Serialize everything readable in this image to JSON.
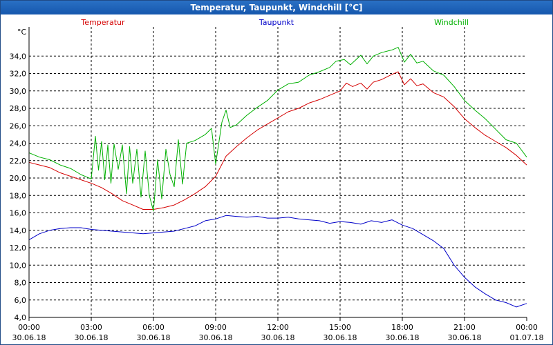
{
  "window": {
    "title": "Temperatur, Taupunkt, Windchill [°C]"
  },
  "colors": {
    "temperature": "#d40000",
    "dewpoint": "#0000c8",
    "windchill": "#00b000",
    "grid": "#000000",
    "axis": "#000000"
  },
  "chart_data": {
    "type": "line",
    "title": "Temperatur, Taupunkt, Windchill [°C]",
    "ylabel": "°C",
    "xlabel": "",
    "ylim": [
      4.0,
      36.0
    ],
    "xlim_hours": [
      0,
      24
    ],
    "yticks": [
      4.0,
      6.0,
      8.0,
      10.0,
      12.0,
      14.0,
      16.0,
      18.0,
      20.0,
      22.0,
      24.0,
      26.0,
      28.0,
      30.0,
      32.0,
      34.0
    ],
    "ytick_labels": [
      "4,0",
      "6,0",
      "8,0",
      "10,0",
      "12,0",
      "14,0",
      "16,0",
      "18,0",
      "20,0",
      "22,0",
      "24,0",
      "26,0",
      "28,0",
      "30,0",
      "32,0",
      "34,0"
    ],
    "xticks": [
      {
        "hour": 0,
        "time": "00:00",
        "date": "30.06.18"
      },
      {
        "hour": 3,
        "time": "03:00",
        "date": "30.06.18"
      },
      {
        "hour": 6,
        "time": "06:00",
        "date": "30.06.18"
      },
      {
        "hour": 9,
        "time": "09:00",
        "date": "30.06.18"
      },
      {
        "hour": 12,
        "time": "12:00",
        "date": "30.06.18"
      },
      {
        "hour": 15,
        "time": "15:00",
        "date": "30.06.18"
      },
      {
        "hour": 18,
        "time": "18:00",
        "date": "30.06.18"
      },
      {
        "hour": 21,
        "time": "21:00",
        "date": "30.06.18"
      },
      {
        "hour": 24,
        "time": "00:00",
        "date": "01.07.18"
      }
    ],
    "grid": true,
    "legend_position": "top",
    "series": [
      {
        "name": "Temperatur",
        "color": "#d40000",
        "points": [
          [
            0.0,
            21.8
          ],
          [
            0.5,
            21.5
          ],
          [
            1.0,
            21.2
          ],
          [
            1.5,
            20.6
          ],
          [
            2.0,
            20.2
          ],
          [
            2.5,
            19.8
          ],
          [
            3.0,
            19.4
          ],
          [
            3.5,
            18.9
          ],
          [
            4.0,
            18.2
          ],
          [
            4.5,
            17.4
          ],
          [
            5.0,
            16.9
          ],
          [
            5.5,
            16.4
          ],
          [
            6.0,
            16.4
          ],
          [
            6.5,
            16.6
          ],
          [
            7.0,
            16.9
          ],
          [
            7.5,
            17.5
          ],
          [
            8.0,
            18.2
          ],
          [
            8.5,
            19.0
          ],
          [
            9.0,
            20.2
          ],
          [
            9.5,
            22.5
          ],
          [
            10.0,
            23.6
          ],
          [
            10.5,
            24.6
          ],
          [
            11.0,
            25.5
          ],
          [
            11.5,
            26.2
          ],
          [
            12.0,
            26.9
          ],
          [
            12.5,
            27.6
          ],
          [
            13.0,
            28.0
          ],
          [
            13.5,
            28.6
          ],
          [
            14.0,
            29.0
          ],
          [
            14.5,
            29.5
          ],
          [
            15.0,
            30.0
          ],
          [
            15.3,
            30.9
          ],
          [
            15.6,
            30.5
          ],
          [
            16.0,
            30.9
          ],
          [
            16.3,
            30.2
          ],
          [
            16.6,
            31.0
          ],
          [
            17.0,
            31.3
          ],
          [
            17.5,
            31.9
          ],
          [
            17.8,
            32.2
          ],
          [
            18.1,
            30.7
          ],
          [
            18.4,
            31.4
          ],
          [
            18.7,
            30.6
          ],
          [
            19.0,
            30.8
          ],
          [
            19.5,
            29.8
          ],
          [
            20.0,
            29.3
          ],
          [
            20.5,
            28.2
          ],
          [
            21.0,
            26.8
          ],
          [
            21.5,
            25.8
          ],
          [
            22.0,
            24.9
          ],
          [
            22.5,
            24.2
          ],
          [
            23.0,
            23.5
          ],
          [
            23.5,
            22.6
          ],
          [
            24.0,
            21.5
          ]
        ]
      },
      {
        "name": "Taupunkt",
        "color": "#0000c8",
        "points": [
          [
            0.0,
            12.9
          ],
          [
            0.5,
            13.6
          ],
          [
            1.0,
            14.0
          ],
          [
            1.5,
            14.2
          ],
          [
            2.0,
            14.3
          ],
          [
            2.5,
            14.3
          ],
          [
            3.0,
            14.1
          ],
          [
            3.5,
            14.0
          ],
          [
            4.0,
            13.9
          ],
          [
            4.5,
            13.8
          ],
          [
            5.0,
            13.7
          ],
          [
            5.5,
            13.6
          ],
          [
            6.0,
            13.7
          ],
          [
            6.5,
            13.8
          ],
          [
            7.0,
            13.9
          ],
          [
            7.5,
            14.2
          ],
          [
            8.0,
            14.5
          ],
          [
            8.5,
            15.1
          ],
          [
            9.0,
            15.3
          ],
          [
            9.5,
            15.7
          ],
          [
            10.0,
            15.6
          ],
          [
            10.5,
            15.5
          ],
          [
            11.0,
            15.6
          ],
          [
            11.5,
            15.4
          ],
          [
            12.0,
            15.4
          ],
          [
            12.5,
            15.5
          ],
          [
            13.0,
            15.3
          ],
          [
            13.5,
            15.2
          ],
          [
            14.0,
            15.1
          ],
          [
            14.5,
            14.8
          ],
          [
            15.0,
            15.0
          ],
          [
            15.5,
            14.9
          ],
          [
            16.0,
            14.7
          ],
          [
            16.5,
            15.1
          ],
          [
            17.0,
            14.9
          ],
          [
            17.5,
            15.2
          ],
          [
            18.0,
            14.6
          ],
          [
            18.5,
            14.2
          ],
          [
            19.0,
            13.5
          ],
          [
            19.5,
            12.8
          ],
          [
            20.0,
            11.9
          ],
          [
            20.5,
            10.0
          ],
          [
            21.0,
            8.6
          ],
          [
            21.5,
            7.5
          ],
          [
            22.0,
            6.7
          ],
          [
            22.5,
            6.0
          ],
          [
            23.0,
            5.7
          ],
          [
            23.5,
            5.2
          ],
          [
            24.0,
            5.6
          ]
        ]
      },
      {
        "name": "Windchill",
        "color": "#00b000",
        "points": [
          [
            0.0,
            22.9
          ],
          [
            0.5,
            22.4
          ],
          [
            1.0,
            22.1
          ],
          [
            1.5,
            21.5
          ],
          [
            2.0,
            21.1
          ],
          [
            2.5,
            20.4
          ],
          [
            3.0,
            19.9
          ],
          [
            3.2,
            24.8
          ],
          [
            3.35,
            20.9
          ],
          [
            3.5,
            24.2
          ],
          [
            3.65,
            19.8
          ],
          [
            3.8,
            23.8
          ],
          [
            3.95,
            19.4
          ],
          [
            4.1,
            23.9
          ],
          [
            4.3,
            21.0
          ],
          [
            4.5,
            23.8
          ],
          [
            4.7,
            18.2
          ],
          [
            4.85,
            23.6
          ],
          [
            5.0,
            19.4
          ],
          [
            5.2,
            23.3
          ],
          [
            5.4,
            17.8
          ],
          [
            5.6,
            23.1
          ],
          [
            5.8,
            18.0
          ],
          [
            6.0,
            16.2
          ],
          [
            6.2,
            22.1
          ],
          [
            6.4,
            17.6
          ],
          [
            6.6,
            23.3
          ],
          [
            6.8,
            20.4
          ],
          [
            7.0,
            19.0
          ],
          [
            7.2,
            24.4
          ],
          [
            7.4,
            19.3
          ],
          [
            7.6,
            24.0
          ],
          [
            8.0,
            24.3
          ],
          [
            8.5,
            25.0
          ],
          [
            8.8,
            25.7
          ],
          [
            9.0,
            21.6
          ],
          [
            9.3,
            26.4
          ],
          [
            9.5,
            27.8
          ],
          [
            9.7,
            25.8
          ],
          [
            10.0,
            26.1
          ],
          [
            10.5,
            27.2
          ],
          [
            11.0,
            28.1
          ],
          [
            11.5,
            28.9
          ],
          [
            12.0,
            30.1
          ],
          [
            12.5,
            30.8
          ],
          [
            13.0,
            31.0
          ],
          [
            13.5,
            31.8
          ],
          [
            14.0,
            32.2
          ],
          [
            14.5,
            32.7
          ],
          [
            14.8,
            33.4
          ],
          [
            15.2,
            33.6
          ],
          [
            15.5,
            33.0
          ],
          [
            16.0,
            34.1
          ],
          [
            16.3,
            33.1
          ],
          [
            16.6,
            34.0
          ],
          [
            17.0,
            34.4
          ],
          [
            17.5,
            34.7
          ],
          [
            17.8,
            35.0
          ],
          [
            18.1,
            33.3
          ],
          [
            18.4,
            34.2
          ],
          [
            18.7,
            33.2
          ],
          [
            19.0,
            33.4
          ],
          [
            19.5,
            32.3
          ],
          [
            20.0,
            31.8
          ],
          [
            20.5,
            30.5
          ],
          [
            21.0,
            28.9
          ],
          [
            21.5,
            27.8
          ],
          [
            22.0,
            26.8
          ],
          [
            22.5,
            25.6
          ],
          [
            23.0,
            24.4
          ],
          [
            23.5,
            24.0
          ],
          [
            24.0,
            22.4
          ]
        ]
      }
    ]
  }
}
